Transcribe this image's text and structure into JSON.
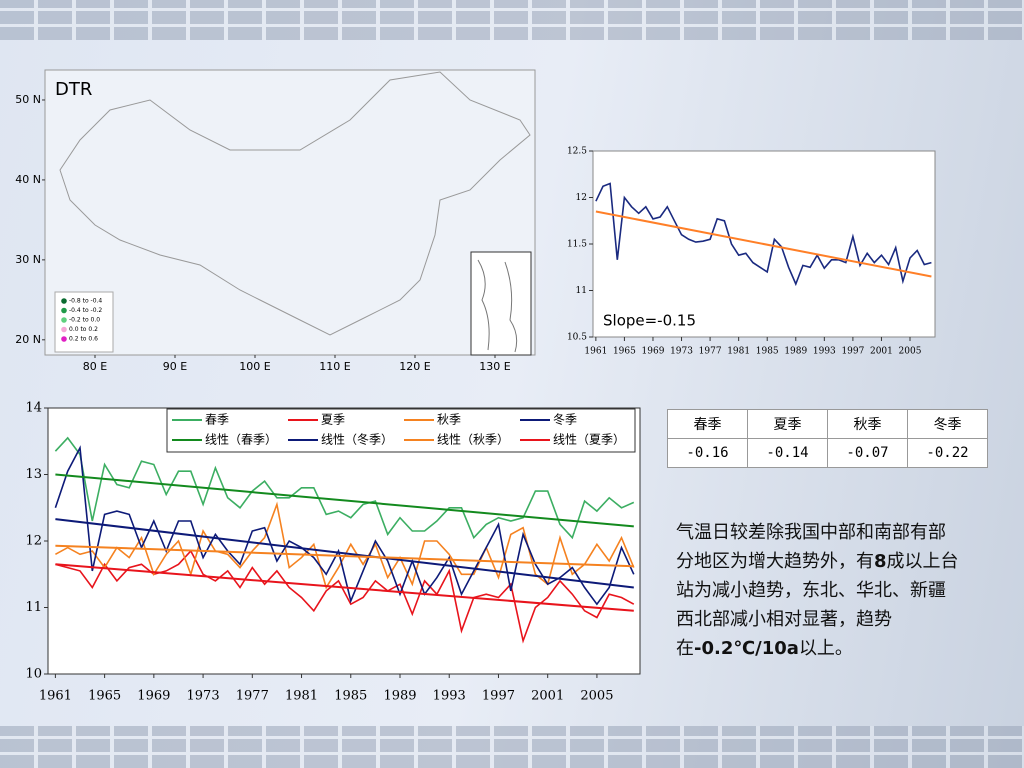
{
  "chart_data": [
    {
      "type": "map",
      "title": "DTR",
      "xlim": [
        73.75,
        135
      ],
      "ylim": [
        18.1,
        53.75
      ],
      "xticks": [
        {
          "value": 80,
          "label": "80 E"
        },
        {
          "value": 90,
          "label": "90 E"
        },
        {
          "value": 100,
          "label": "100 E"
        },
        {
          "value": 110,
          "label": "110 E"
        },
        {
          "value": 120,
          "label": "120 E"
        },
        {
          "value": 130,
          "label": "130 E"
        }
      ],
      "yticks": [
        {
          "value": 20,
          "label": "20 N"
        },
        {
          "value": 30,
          "label": "30 N"
        },
        {
          "value": 40,
          "label": "40 N"
        },
        {
          "value": 50,
          "label": "50 N"
        }
      ],
      "legend": [
        {
          "label": "-0.8 to -0.4",
          "color": "#0a6b30"
        },
        {
          "label": "-0.4 to -0.2",
          "color": "#1f9a48"
        },
        {
          "label": "-0.2 to 0.0",
          "color": "#5fd07e"
        },
        {
          "label": "0.0 to 0.2",
          "color": "#f5a6d6"
        },
        {
          "label": "0.2 to 0.6",
          "color": "#e01fc4"
        }
      ]
    },
    {
      "type": "line",
      "annotation": "Slope=-0.15",
      "xlim": [
        1960.6,
        2008.5
      ],
      "ylim": [
        10.5,
        12.5
      ],
      "xticks": [
        1961,
        1965,
        1969,
        1973,
        1977,
        1981,
        1985,
        1989,
        1993,
        1997,
        2001,
        2005
      ],
      "yticks": [
        10.5,
        11,
        11.5,
        12,
        12.5
      ],
      "x": [
        1961,
        1962,
        1963,
        1964,
        1965,
        1966,
        1967,
        1968,
        1969,
        1970,
        1971,
        1972,
        1973,
        1974,
        1975,
        1976,
        1977,
        1978,
        1979,
        1980,
        1981,
        1982,
        1983,
        1984,
        1985,
        1986,
        1987,
        1988,
        1989,
        1990,
        1991,
        1992,
        1993,
        1994,
        1995,
        1996,
        1997,
        1998,
        1999,
        2000,
        2001,
        2002,
        2003,
        2004,
        2005,
        2006,
        2007,
        2008
      ],
      "series": [
        {
          "color": "#1a2a80",
          "values": [
            11.96,
            12.12,
            12.15,
            11.33,
            12.0,
            11.9,
            11.83,
            11.9,
            11.77,
            11.79,
            11.9,
            11.75,
            11.6,
            11.55,
            11.52,
            11.53,
            11.55,
            11.77,
            11.75,
            11.5,
            11.38,
            11.4,
            11.3,
            11.25,
            11.2,
            11.55,
            11.47,
            11.25,
            11.07,
            11.27,
            11.25,
            11.38,
            11.24,
            11.33,
            11.33,
            11.3,
            11.58,
            11.27,
            11.4,
            11.3,
            11.38,
            11.28,
            11.46,
            11.1,
            11.35,
            11.43,
            11.28,
            11.3
          ]
        },
        {
          "color": "#ff7f27",
          "x": [
            1961,
            2008
          ],
          "values": [
            11.85,
            11.15
          ]
        }
      ]
    },
    {
      "type": "line",
      "xlim": [
        1960.4,
        2008.5
      ],
      "ylim": [
        10,
        14
      ],
      "xticks": [
        1961,
        1965,
        1969,
        1973,
        1977,
        1981,
        1985,
        1989,
        1993,
        1997,
        2001,
        2005
      ],
      "yticks": [
        10,
        11,
        12,
        13,
        14
      ],
      "x": [
        1961,
        1962,
        1963,
        1964,
        1965,
        1966,
        1967,
        1968,
        1969,
        1970,
        1971,
        1972,
        1973,
        1974,
        1975,
        1976,
        1977,
        1978,
        1979,
        1980,
        1981,
        1982,
        1983,
        1984,
        1985,
        1986,
        1987,
        1988,
        1989,
        1990,
        1991,
        1992,
        1993,
        1994,
        1995,
        1996,
        1997,
        1998,
        1999,
        2000,
        2001,
        2002,
        2003,
        2004,
        2005,
        2006,
        2007,
        2008
      ],
      "series": [
        {
          "name": "春季",
          "color": "#3cae62",
          "values": [
            13.35,
            13.55,
            13.3,
            12.3,
            13.15,
            12.85,
            12.8,
            13.2,
            13.15,
            12.7,
            13.05,
            13.05,
            12.55,
            13.1,
            12.65,
            12.5,
            12.75,
            12.9,
            12.65,
            12.65,
            12.8,
            12.8,
            12.4,
            12.45,
            12.35,
            12.55,
            12.6,
            12.1,
            12.35,
            12.15,
            12.15,
            12.3,
            12.5,
            12.5,
            12.05,
            12.25,
            12.35,
            12.3,
            12.35,
            12.75,
            12.75,
            12.25,
            12.05,
            12.6,
            12.45,
            12.65,
            12.5,
            12.58
          ]
        },
        {
          "name": "夏季",
          "color": "#e8141c",
          "values": [
            11.65,
            11.6,
            11.55,
            11.3,
            11.65,
            11.4,
            11.6,
            11.65,
            11.5,
            11.55,
            11.65,
            11.85,
            11.5,
            11.4,
            11.55,
            11.3,
            11.6,
            11.35,
            11.55,
            11.3,
            11.15,
            10.95,
            11.25,
            11.4,
            11.05,
            11.15,
            11.4,
            11.25,
            11.35,
            10.9,
            11.4,
            11.2,
            11.55,
            10.65,
            11.15,
            11.2,
            11.15,
            11.35,
            10.5,
            11.0,
            11.15,
            11.4,
            11.2,
            10.95,
            10.85,
            11.2,
            11.15,
            11.05
          ]
        },
        {
          "name": "秋季",
          "color": "#f58220",
          "values": [
            11.8,
            11.9,
            11.8,
            11.85,
            11.6,
            11.9,
            11.75,
            12.05,
            11.5,
            11.8,
            12.0,
            11.5,
            12.15,
            11.85,
            11.8,
            11.6,
            11.85,
            12.05,
            12.55,
            11.6,
            11.75,
            11.95,
            11.3,
            11.6,
            11.95,
            11.65,
            11.95,
            11.45,
            11.75,
            11.35,
            12.0,
            12.0,
            11.8,
            11.5,
            11.5,
            11.9,
            11.45,
            12.1,
            12.2,
            11.5,
            11.35,
            12.05,
            11.5,
            11.65,
            11.95,
            11.7,
            12.05,
            11.6
          ]
        },
        {
          "name": "冬季",
          "color": "#0d1a78",
          "values": [
            12.5,
            13.05,
            13.4,
            11.55,
            12.4,
            12.45,
            12.4,
            11.9,
            12.3,
            11.85,
            12.3,
            12.3,
            11.75,
            12.1,
            11.85,
            11.65,
            12.15,
            12.2,
            11.7,
            12.0,
            11.9,
            11.75,
            11.5,
            11.85,
            11.1,
            11.55,
            12.0,
            11.7,
            11.2,
            11.7,
            11.2,
            11.45,
            11.75,
            11.2,
            11.55,
            11.9,
            12.25,
            11.25,
            12.1,
            11.65,
            11.35,
            11.45,
            11.6,
            11.3,
            11.05,
            11.3,
            11.9,
            11.5
          ]
        },
        {
          "name": "线性（春季）",
          "color": "#138a1e",
          "x": [
            1961,
            2008
          ],
          "values": [
            13.0,
            12.22
          ]
        },
        {
          "name": "线性（冬季）",
          "color": "#0d1a78",
          "x": [
            1961,
            2008
          ],
          "values": [
            12.33,
            11.3
          ]
        },
        {
          "name": "线性（秋季）",
          "color": "#f58220",
          "x": [
            1961,
            2008
          ],
          "values": [
            11.93,
            11.62
          ]
        },
        {
          "name": "线性（夏季）",
          "color": "#e8141c",
          "x": [
            1961,
            2008
          ],
          "values": [
            11.65,
            10.95
          ]
        }
      ]
    }
  ],
  "table": {
    "header": [
      "春季",
      "夏季",
      "秋季",
      "冬季"
    ],
    "rows": [
      [
        -0.16,
        -0.14,
        -0.07,
        -0.22
      ]
    ]
  },
  "text": {
    "parts": [
      "气温日较差除我国中部和南部有部分地区为增大趋势外，有",
      "8",
      "成以上台站为减小趋势，东北、华北、新疆西北部减小相对显著，趋势在",
      "-0.2℃/10a",
      "以上。"
    ]
  }
}
